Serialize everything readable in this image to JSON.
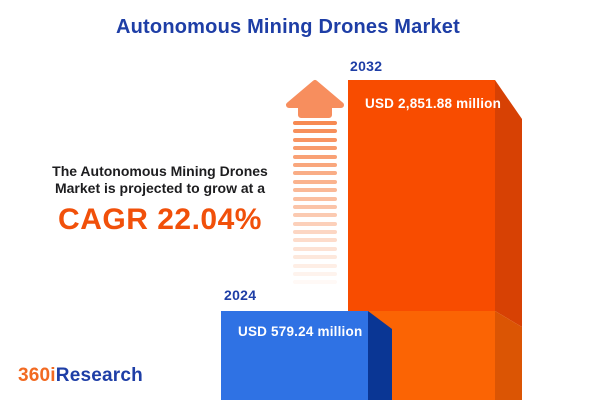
{
  "title": "Autonomous Mining Drones Market",
  "description": {
    "line1": "The Autonomous Mining Drones",
    "line2": "Market is projected to grow at a",
    "cagr_label": "CAGR 22.04%"
  },
  "chart_data": {
    "type": "bar",
    "title": "Autonomous Mining Drones Market",
    "unit": "USD million",
    "categories": [
      "2024",
      "2032"
    ],
    "values": [
      579.24,
      2851.88
    ],
    "value_labels": [
      "USD 579.24 million",
      "USD 2,851.88 million"
    ],
    "cagr_percent": 22.04,
    "legend": "none",
    "axes": "none",
    "style": "3d-cuboid-bars"
  },
  "icons": {
    "growth_arrow": "up-arrow-with-fading-dashes"
  },
  "logo": {
    "prefix": "360i",
    "suffix": "Research"
  },
  "colors": {
    "navy": "#1E3EA6",
    "text_dark": "#1D1D1F",
    "cagr_orange": "#F1500A",
    "arrow_orange": "#F78E5E",
    "stripe_orange": "#F78A52",
    "bar_2024_front": "#2F72E4",
    "bar_2024_side": "#0A3694",
    "bar_2032_front": "#F84C00",
    "bar_2032_side": "#D74104",
    "bar_2032_light_front": "#FB6404",
    "bar_2032_light_side": "#DB5504",
    "logo_orange": "#F26A22",
    "background": "#FFFFFF"
  }
}
